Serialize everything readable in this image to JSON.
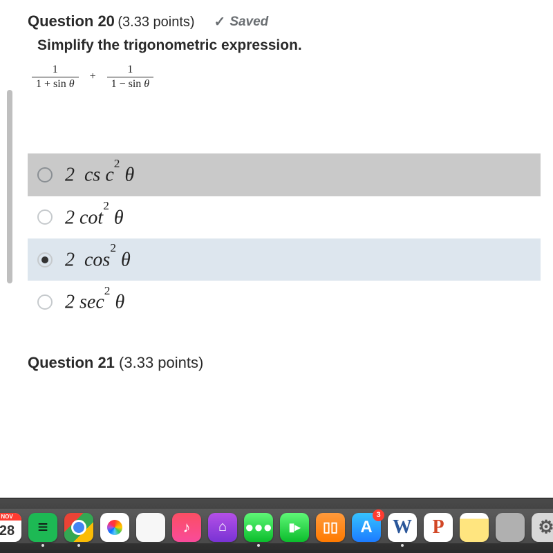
{
  "question20": {
    "label": "Question 20",
    "points": "(3.33 points)",
    "saved_label": "Saved",
    "prompt": "Simplify the trigonometric expression.",
    "expr": {
      "frac1_num": "1",
      "frac1_den": "1 + sin θ",
      "op": "+",
      "frac2_num": "1",
      "frac2_den": "1 − sin θ"
    },
    "options": {
      "a": {
        "coeff": "2",
        "fn": "cs c",
        "sup": "2",
        "var": "θ",
        "selected": false,
        "highlight": "hl-a",
        "radio_style": ""
      },
      "b": {
        "coeff": "2",
        "fn": "cot",
        "sup": "2",
        "var": "θ",
        "selected": false,
        "highlight": "",
        "radio_style": "dim"
      },
      "c": {
        "coeff": "2",
        "fn": "cos",
        "sup": "2",
        "var": "θ",
        "selected": true,
        "highlight": "hl-c",
        "radio_style": "dim"
      },
      "d": {
        "coeff": "2",
        "fn": "sec",
        "sup": "2",
        "var": "θ",
        "selected": false,
        "highlight": "",
        "radio_style": "dim"
      }
    }
  },
  "question21": {
    "label": "Question 21",
    "points": "(3.33 points)"
  },
  "dock": {
    "calendar_month": "NOV",
    "calendar_day": "28",
    "appstore_badge": "3"
  }
}
